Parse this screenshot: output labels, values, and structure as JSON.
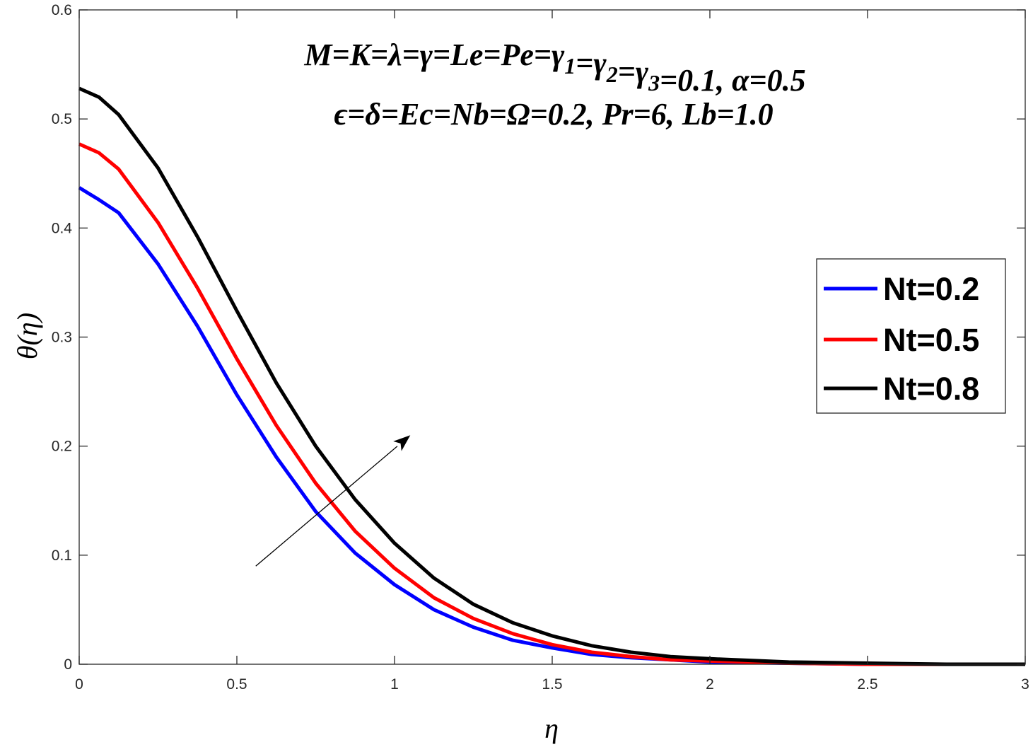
{
  "chart_data": {
    "type": "line",
    "title": "",
    "xlabel": "η",
    "ylabel": "θ(η)",
    "xlim": [
      0,
      3
    ],
    "ylim": [
      0,
      0.6
    ],
    "xticks": [
      "0",
      "0.5",
      "1",
      "1.5",
      "2",
      "2.5",
      "3"
    ],
    "yticks": [
      "0",
      "0.1",
      "0.2",
      "0.3",
      "0.4",
      "0.5",
      "0.6"
    ],
    "grid": false,
    "legend_position": "right",
    "annotations": {
      "line1": "M=K=λ=γ=Le=Pe=γ1=γ2=γ3=0.1, α=0.5",
      "line2": "ϵ=δ=Ec=Nb=Ω=0.2, Pr=6, Lb=1.0",
      "arrow": {
        "from": [
          0.56,
          0.09
        ],
        "to": [
          1.05,
          0.21
        ],
        "label": ""
      }
    },
    "x": [
      0,
      0.0625,
      0.125,
      0.25,
      0.375,
      0.5,
      0.625,
      0.75,
      0.875,
      1.0,
      1.125,
      1.25,
      1.375,
      1.5,
      1.625,
      1.75,
      1.875,
      2.0,
      2.25,
      2.5,
      2.75,
      3.0
    ],
    "series": [
      {
        "name": "Nt=0.2",
        "color": "#0000ff",
        "values": [
          0.437,
          0.426,
          0.414,
          0.367,
          0.31,
          0.247,
          0.19,
          0.14,
          0.102,
          0.073,
          0.05,
          0.034,
          0.022,
          0.015,
          0.009,
          0.006,
          0.004,
          0.002,
          0.001,
          0.0,
          0.0,
          0.0
        ]
      },
      {
        "name": "Nt=0.5",
        "color": "#ff0000",
        "values": [
          0.477,
          0.469,
          0.454,
          0.405,
          0.345,
          0.28,
          0.219,
          0.166,
          0.122,
          0.088,
          0.061,
          0.042,
          0.028,
          0.018,
          0.011,
          0.007,
          0.004,
          0.003,
          0.001,
          0.0,
          0.0,
          0.0
        ]
      },
      {
        "name": "Nt=0.8",
        "color": "#000000",
        "values": [
          0.528,
          0.52,
          0.504,
          0.455,
          0.392,
          0.324,
          0.258,
          0.2,
          0.151,
          0.111,
          0.079,
          0.055,
          0.038,
          0.026,
          0.017,
          0.011,
          0.007,
          0.005,
          0.002,
          0.001,
          0.0,
          0.0
        ]
      }
    ]
  }
}
